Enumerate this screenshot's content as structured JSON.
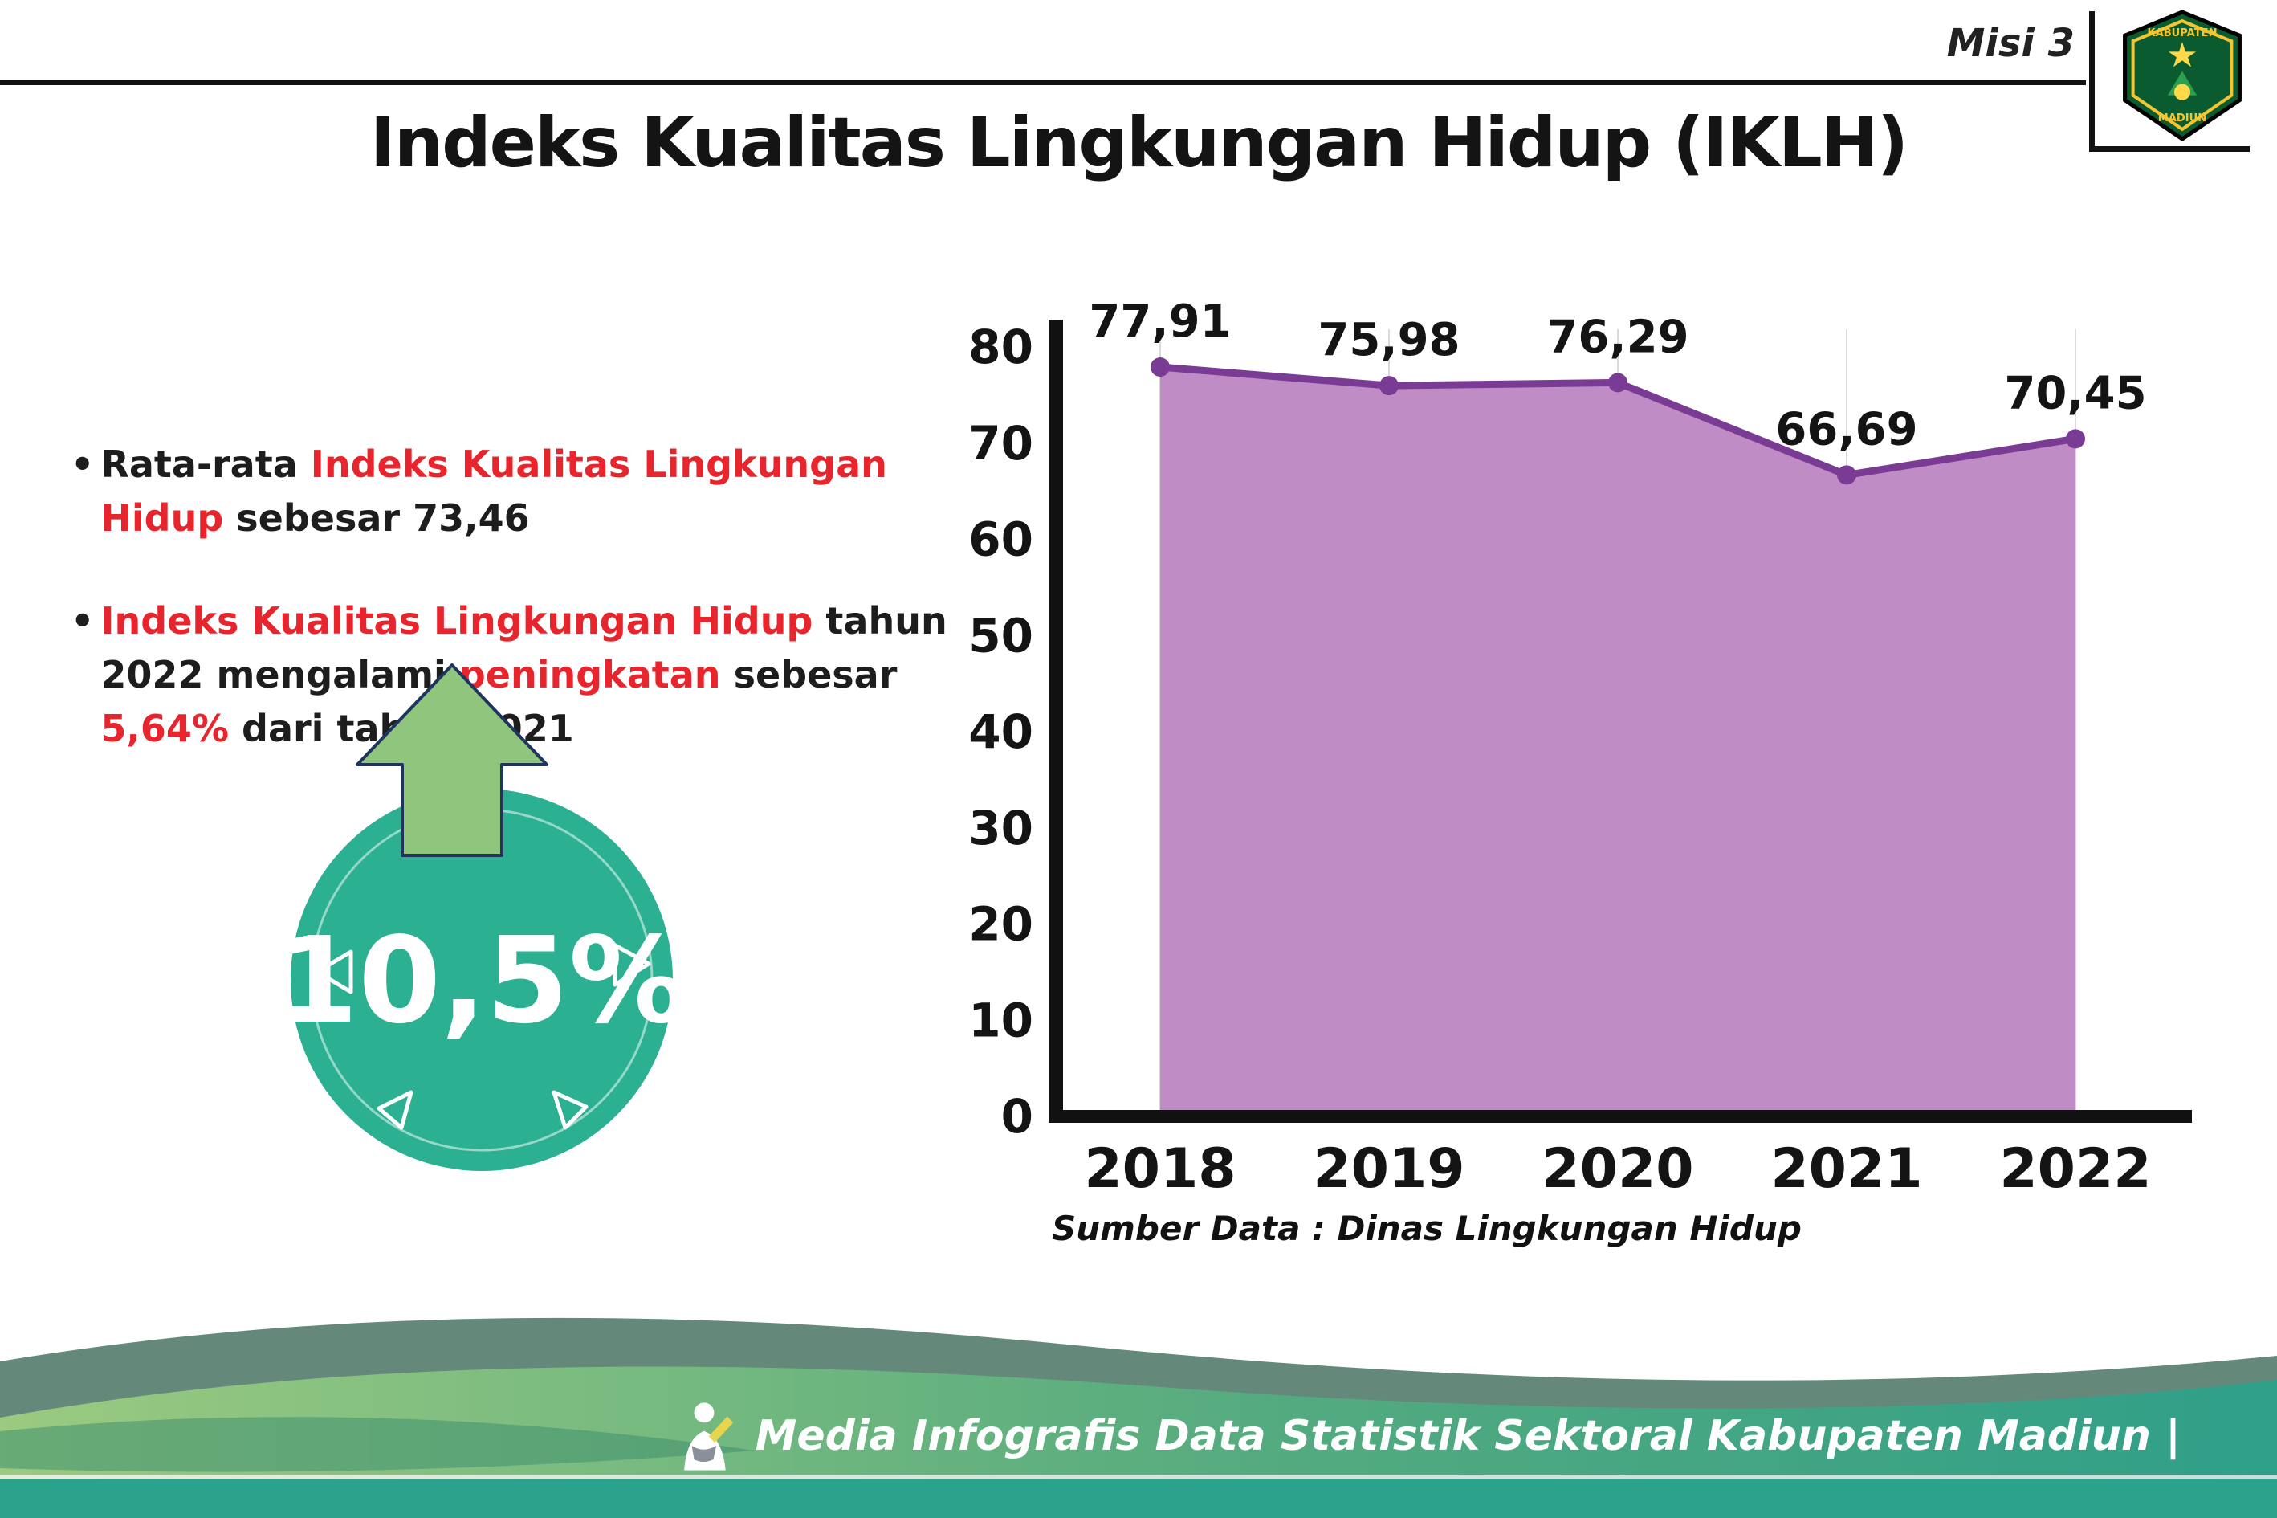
{
  "colors": {
    "red_accent": "#e8252c",
    "text_dark": "#1d1d1d",
    "chart_area": "#c08cc6",
    "chart_line": "#7a3b94",
    "badge_teal": "#2cb092",
    "arrow_green": "#8fc57c",
    "footer_teal": "#2ba38c"
  },
  "header": {
    "misi_label": "Misi 3",
    "title": "Indeks Kualitas Lingkungan Hidup (IKLH)",
    "logo": {
      "name": "kabupaten-madiun-crest",
      "text_top": "KABUPATEN",
      "text_bottom": "MADIUN"
    }
  },
  "bullets": [
    {
      "marker": "•",
      "segments": [
        {
          "text": "Rata-rata ",
          "style": "dark"
        },
        {
          "text": "Indeks Kualitas Lingkungan Hidup",
          "style": "red"
        },
        {
          "text": " sebesar 73,46",
          "style": "dark"
        }
      ]
    },
    {
      "marker": "•",
      "segments": [
        {
          "text": "Indeks Kualitas Lingkungan Hidup",
          "style": "red"
        },
        {
          "text": " tahun 2022 mengalami ",
          "style": "dark"
        },
        {
          "text": "peningkatan",
          "style": "red"
        },
        {
          "text": " sebesar ",
          "style": "dark"
        },
        {
          "text": "5,64%",
          "style": "red"
        },
        {
          "text": " dari tahun 2021",
          "style": "dark"
        }
      ]
    }
  ],
  "badge": {
    "value": "10,5%",
    "arrow_direction": "up"
  },
  "chart_data": {
    "type": "area",
    "title": "Indeks Kualitas Lingkungan Hidup (IKLH)",
    "categories": [
      "2018",
      "2019",
      "2020",
      "2021",
      "2022"
    ],
    "values": [
      77.91,
      75.98,
      76.29,
      66.69,
      70.45
    ],
    "point_labels": [
      "77,91",
      "75,98",
      "76,29",
      "66,69",
      "70,45"
    ],
    "xlabel": "",
    "ylabel": "",
    "ylim": [
      0,
      80
    ],
    "yticks": [
      0,
      10,
      20,
      30,
      40,
      50,
      60,
      70,
      80
    ],
    "grid": "vertical-light",
    "legend": "none",
    "source": "Sumber Data : Dinas Lingkungan Hidup",
    "colors": {
      "area": "#c08cc6",
      "line": "#7a3b94",
      "point": "#7a3b94"
    }
  },
  "footer": {
    "credit": "Media Infografis Data Statistik Sektoral Kabupaten Madiun |"
  }
}
